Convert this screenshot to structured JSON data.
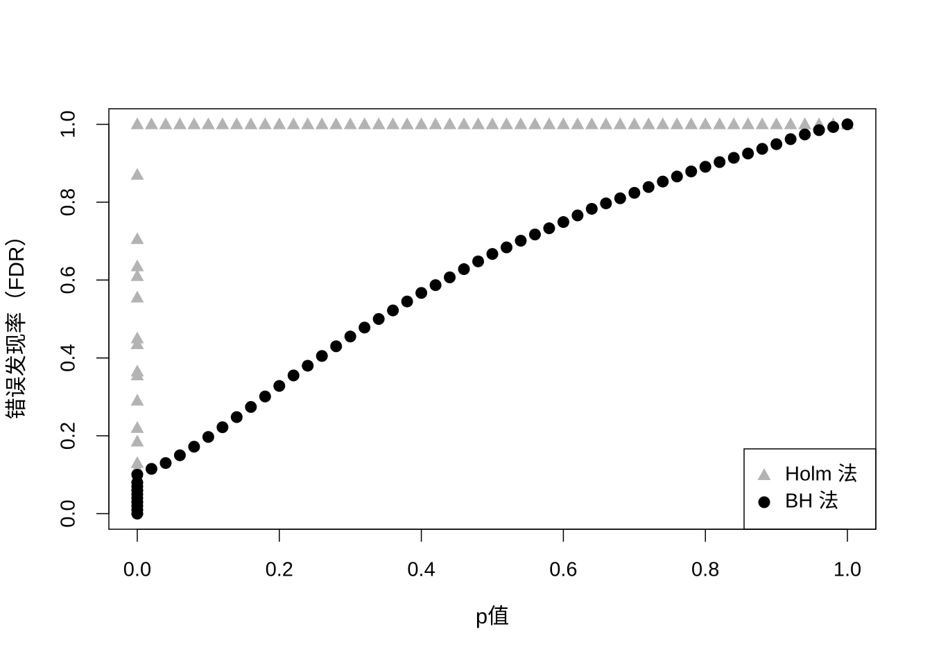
{
  "chart_data": {
    "type": "scatter",
    "x_label": "p值",
    "y_label": "错误发现率（FDR）",
    "xlim": [
      -0.04,
      1.04
    ],
    "ylim": [
      -0.04,
      1.04
    ],
    "xticks": [
      {
        "value": 0,
        "label": "0.0"
      },
      {
        "value": 0.2,
        "label": "0.2"
      },
      {
        "value": 0.4,
        "label": "0.4"
      },
      {
        "value": 0.6,
        "label": "0.6"
      },
      {
        "value": 0.8,
        "label": "0.8"
      },
      {
        "value": 1,
        "label": "1.0"
      }
    ],
    "yticks": [
      {
        "value": 0,
        "label": "0.0"
      },
      {
        "value": 0.2,
        "label": "0.2"
      },
      {
        "value": 0.4,
        "label": "0.4"
      },
      {
        "value": 0.6,
        "label": "0.6"
      },
      {
        "value": 0.8,
        "label": "0.8"
      },
      {
        "value": 1,
        "label": "1.0"
      }
    ],
    "legend": "bottom-right",
    "series": [
      {
        "name": "Holm 法",
        "color": "#b3b3b3",
        "marker": "triangle",
        "x": [
          0,
          0,
          0,
          0,
          0,
          0,
          0,
          0,
          0,
          0,
          0,
          0,
          0,
          0,
          0,
          0,
          0,
          0,
          0,
          0,
          0.02,
          0.04,
          0.06,
          0.08,
          0.1,
          0.12,
          0.14,
          0.16,
          0.18,
          0.2,
          0.22,
          0.24,
          0.26,
          0.28,
          0.3,
          0.32,
          0.34,
          0.36,
          0.38,
          0.4,
          0.42,
          0.44,
          0.46,
          0.48,
          0.5,
          0.52,
          0.54,
          0.56,
          0.58,
          0.6,
          0.62,
          0.64,
          0.66,
          0.68,
          0.7,
          0.72,
          0.74,
          0.76,
          0.78,
          0.8,
          0.82,
          0.84,
          0.86,
          0.88,
          0.9,
          0.92,
          0.94,
          0.96,
          0.98,
          1
        ],
        "values": [
          0.87,
          0.705,
          0.635,
          0.61,
          0.555,
          0.45,
          0.435,
          0.365,
          0.355,
          0.29,
          0.22,
          0.185,
          0.13,
          0.115,
          0.09,
          0.07,
          0.04,
          0.02,
          0.01,
          1,
          1,
          1,
          1,
          1,
          1,
          1,
          1,
          1,
          1,
          1,
          1,
          1,
          1,
          1,
          1,
          1,
          1,
          1,
          1,
          1,
          1,
          1,
          1,
          1,
          1,
          1,
          1,
          1,
          1,
          1,
          1,
          1,
          1,
          1,
          1,
          1,
          1,
          1,
          1,
          1,
          1,
          1,
          1,
          1,
          1,
          1,
          1,
          1,
          1,
          1
        ]
      },
      {
        "name": "BH 法",
        "color": "#000000",
        "marker": "circle",
        "x": [
          0,
          0,
          0,
          0,
          0,
          0,
          0,
          0,
          0,
          0,
          0.02,
          0.04,
          0.06,
          0.08,
          0.1,
          0.12,
          0.14,
          0.16,
          0.18,
          0.2,
          0.22,
          0.24,
          0.26,
          0.28,
          0.3,
          0.32,
          0.34,
          0.36,
          0.38,
          0.4,
          0.42,
          0.44,
          0.46,
          0.48,
          0.5,
          0.52,
          0.54,
          0.56,
          0.58,
          0.6,
          0.62,
          0.64,
          0.66,
          0.68,
          0.7,
          0.72,
          0.74,
          0.76,
          0.78,
          0.8,
          0.82,
          0.84,
          0.86,
          0.88,
          0.9,
          0.92,
          0.94,
          0.96,
          0.98,
          1
        ],
        "values": [
          0,
          0.01,
          0.02,
          0.03,
          0.04,
          0.05,
          0.06,
          0.07,
          0.08,
          0.1,
          0.115,
          0.13,
          0.15,
          0.172,
          0.197,
          0.222,
          0.248,
          0.274,
          0.301,
          0.328,
          0.355,
          0.38,
          0.405,
          0.43,
          0.455,
          0.478,
          0.5,
          0.522,
          0.545,
          0.567,
          0.587,
          0.607,
          0.628,
          0.648,
          0.667,
          0.684,
          0.701,
          0.717,
          0.733,
          0.749,
          0.766,
          0.783,
          0.797,
          0.81,
          0.824,
          0.839,
          0.853,
          0.866,
          0.879,
          0.891,
          0.903,
          0.914,
          0.925,
          0.937,
          0.949,
          0.962,
          0.974,
          0.985,
          0.993,
          1
        ]
      }
    ]
  }
}
